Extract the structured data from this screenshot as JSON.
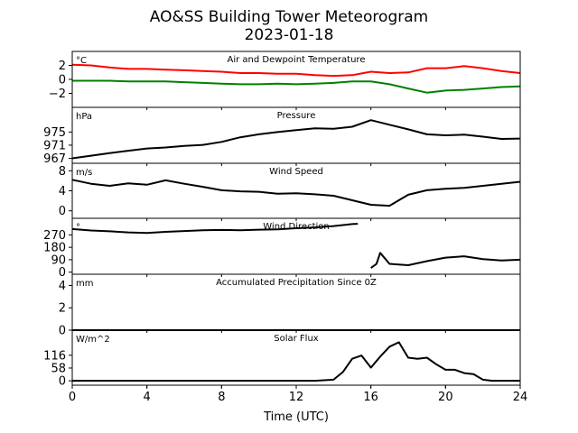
{
  "title_line1": "AO&SS Building Tower Meteorogram",
  "title_line2": "2023-01-18",
  "xlabel": "Time (UTC)",
  "x_ticks": [
    0,
    4,
    8,
    12,
    16,
    20,
    24
  ],
  "chart_data": [
    {
      "type": "line",
      "title": "Air and Dewpoint Temperature",
      "unit": "°C",
      "ylim": [
        -4,
        4
      ],
      "y_ticks": [
        2,
        0,
        -2
      ],
      "x": [
        0,
        1,
        2,
        3,
        4,
        5,
        6,
        7,
        8,
        9,
        10,
        11,
        12,
        13,
        14,
        15,
        16,
        17,
        18,
        19,
        20,
        21,
        22,
        23,
        24
      ],
      "series": [
        {
          "name": "",
          "color": "#ff0000",
          "values": [
            2.1,
            2.0,
            1.7,
            1.5,
            1.5,
            1.4,
            1.3,
            1.2,
            1.1,
            0.9,
            0.9,
            0.8,
            0.8,
            0.6,
            0.5,
            0.6,
            1.1,
            0.9,
            1.0,
            1.6,
            1.6,
            1.9,
            1.6,
            1.2,
            0.9
          ]
        },
        {
          "name": "",
          "color": "#008000",
          "values": [
            -0.2,
            -0.2,
            -0.2,
            -0.3,
            -0.3,
            -0.3,
            -0.4,
            -0.5,
            -0.6,
            -0.7,
            -0.7,
            -0.6,
            -0.7,
            -0.6,
            -0.5,
            -0.3,
            -0.3,
            -0.7,
            -1.3,
            -1.9,
            -1.6,
            -1.5,
            -1.3,
            -1.1,
            -1.0
          ]
        }
      ]
    },
    {
      "type": "line",
      "title": "Pressure",
      "unit": "hPa",
      "ylim": [
        965.5,
        982.5
      ],
      "y_ticks": [
        975,
        971,
        967
      ],
      "x": [
        0,
        1,
        2,
        3,
        4,
        5,
        6,
        7,
        8,
        9,
        10,
        11,
        12,
        13,
        14,
        15,
        16,
        17,
        18,
        19,
        20,
        21,
        22,
        23,
        24
      ],
      "series": [
        {
          "name": "",
          "color": "#000000",
          "values": [
            967.0,
            967.8,
            968.6,
            969.3,
            970.0,
            970.3,
            970.8,
            971.1,
            972.0,
            973.4,
            974.3,
            975.0,
            975.6,
            976.1,
            976.0,
            976.6,
            978.6,
            977.2,
            975.8,
            974.3,
            974.0,
            974.2,
            973.6,
            972.9,
            973.0
          ]
        }
      ]
    },
    {
      "type": "line",
      "title": "Wind Speed",
      "unit": "m/s",
      "ylim": [
        -1.5,
        9.5
      ],
      "y_ticks": [
        8,
        4,
        0
      ],
      "x": [
        0,
        1,
        2,
        3,
        4,
        5,
        6,
        7,
        8,
        9,
        10,
        11,
        12,
        13,
        14,
        15,
        16,
        17,
        18,
        19,
        20,
        21,
        22,
        23,
        24
      ],
      "series": [
        {
          "name": "",
          "color": "#000000",
          "values": [
            6.2,
            5.4,
            5.0,
            5.5,
            5.2,
            6.1,
            5.4,
            4.8,
            4.1,
            3.9,
            3.8,
            3.4,
            3.5,
            3.3,
            3.0,
            2.1,
            1.2,
            1.0,
            3.2,
            4.1,
            4.4,
            4.6,
            5.0,
            5.4,
            5.8
          ]
        }
      ]
    },
    {
      "type": "line",
      "title": "Wind Direction",
      "unit": "°",
      "ylim": [
        -15,
        390
      ],
      "y_ticks": [
        270,
        180,
        90,
        0
      ],
      "x": [
        0,
        1,
        2,
        3,
        4,
        5,
        6,
        7,
        8,
        9,
        10,
        11,
        12,
        13,
        14,
        15,
        15.3,
        15.5,
        16,
        16.3,
        16.5,
        17,
        18,
        19,
        20,
        21,
        22,
        23,
        24
      ],
      "series": [
        {
          "name": "",
          "color": "#000000",
          "values": [
            312,
            302,
            296,
            288,
            284,
            292,
            298,
            304,
            306,
            304,
            308,
            310,
            318,
            324,
            334,
            348,
            350,
            null,
            30,
            60,
            140,
            60,
            50,
            80,
            105,
            115,
            95,
            85,
            90
          ]
        }
      ]
    },
    {
      "type": "line",
      "title": "Accumulated Precipitation Since 0Z",
      "unit": "mm",
      "ylim": [
        0,
        5
      ],
      "y_ticks": [
        4,
        2,
        0
      ],
      "x": [
        0,
        24
      ],
      "series": [
        {
          "name": "",
          "color": "#000000",
          "values": [
            0,
            0
          ]
        }
      ]
    },
    {
      "type": "line",
      "title": "Solar Flux",
      "unit": "W/m^2",
      "ylim": [
        -20,
        230
      ],
      "y_ticks": [
        116,
        58,
        0
      ],
      "x": [
        0,
        13,
        14,
        14.5,
        15,
        15.5,
        16,
        16.5,
        17,
        17.5,
        18,
        18.5,
        19,
        19.5,
        20,
        20.5,
        21,
        21.5,
        22,
        22.5,
        23,
        24
      ],
      "series": [
        {
          "name": "",
          "color": "#000000",
          "values": [
            0,
            0,
            5,
            40,
            100,
            115,
            60,
            110,
            155,
            175,
            105,
            100,
            105,
            75,
            50,
            50,
            35,
            30,
            5,
            0,
            0,
            0
          ]
        }
      ]
    }
  ]
}
